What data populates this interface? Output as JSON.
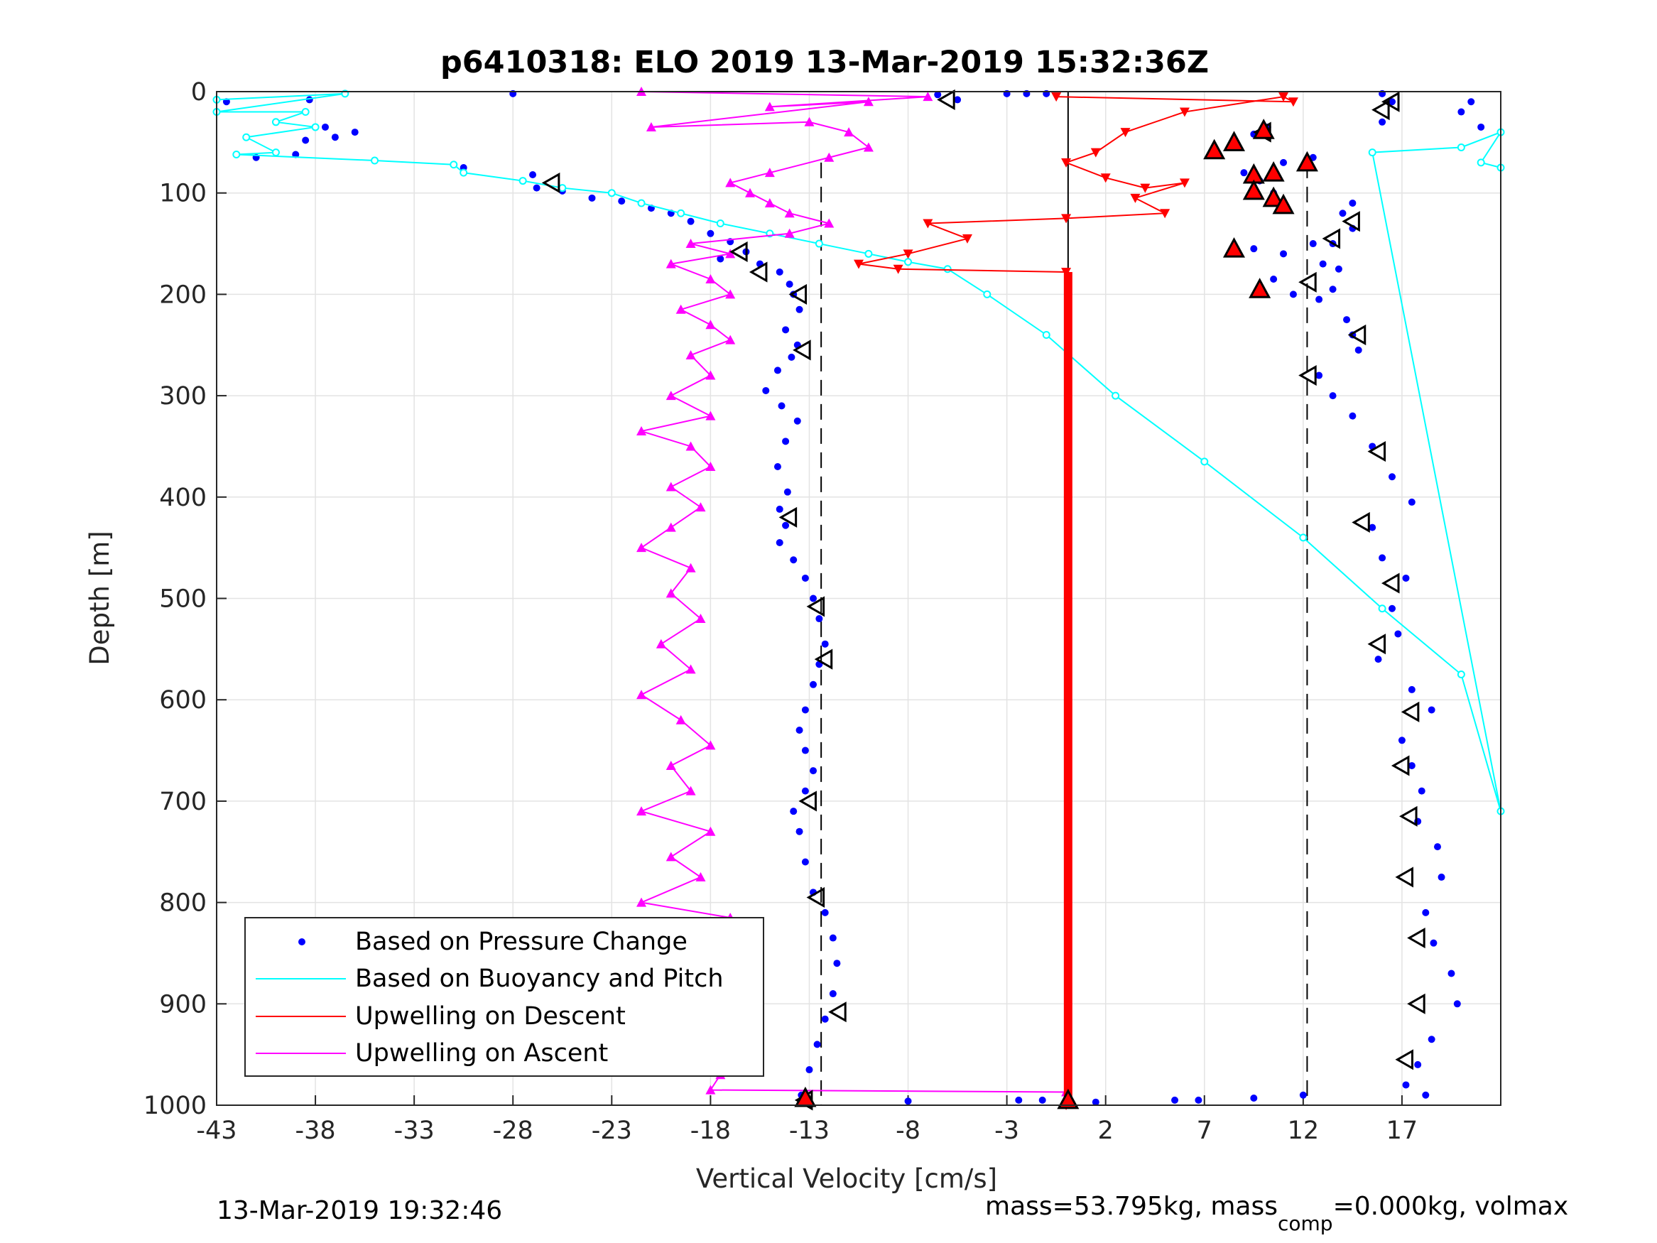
{
  "chart_data": {
    "type": "scatter",
    "title": "p6410318: ELO 2019 13-Mar-2019 15:32:36Z",
    "xlabel": "Vertical Velocity [cm/s]",
    "ylabel": "Depth [m]",
    "xlim": [
      -43,
      22
    ],
    "ylim": [
      0,
      1000
    ],
    "y_reversed": true,
    "grid": true,
    "legend_position": "bottom-left",
    "xticks": [
      -43,
      -38,
      -33,
      -28,
      -23,
      -18,
      -13,
      -8,
      -3,
      2,
      7,
      12,
      17
    ],
    "yticks": [
      0,
      100,
      200,
      300,
      400,
      500,
      600,
      700,
      800,
      900,
      1000
    ],
    "xtick_labels": [
      "-43",
      "-38",
      "-33",
      "-28",
      "-23",
      "-18",
      "-13",
      "-8",
      "-3",
      "2",
      "7",
      "12",
      "17"
    ],
    "ytick_labels": [
      "0",
      "100",
      "200",
      "300",
      "400",
      "500",
      "600",
      "700",
      "800",
      "900",
      "1000"
    ],
    "reference_lines": {
      "solid_x": 0.1,
      "dashed_x": [
        -12.4,
        12.2
      ]
    },
    "colors": {
      "pressure": "#0000ff",
      "buoyancy": "#00ffff",
      "descent": "#ff0000",
      "ascent": "#ff00ff",
      "reference": "#000000",
      "grid": "#e3e3e3"
    },
    "legend": [
      {
        "label": "Based on Pressure Change",
        "marker": "dot",
        "color": "#0000ff"
      },
      {
        "label": "Based on Buoyancy and Pitch",
        "marker": "line",
        "color": "#00ffff"
      },
      {
        "label": "Upwelling on Descent",
        "marker": "line",
        "color": "#ff0000"
      },
      {
        "label": "Upwelling on Ascent",
        "marker": "line",
        "color": "#ff00ff"
      }
    ],
    "series": [
      {
        "name": "Based on Pressure Change",
        "points": [
          [
            -42.5,
            10
          ],
          [
            -38.3,
            8
          ],
          [
            -37.5,
            35
          ],
          [
            -38.5,
            48
          ],
          [
            -36,
            40
          ],
          [
            -41,
            65
          ],
          [
            -39,
            62
          ],
          [
            -37,
            45
          ],
          [
            -35,
            68
          ],
          [
            -28,
            2
          ],
          [
            -30.5,
            75
          ],
          [
            -27,
            82
          ],
          [
            -26.8,
            95
          ],
          [
            -25.5,
            98
          ],
          [
            -24,
            105
          ],
          [
            -22.5,
            108
          ],
          [
            -21,
            115
          ],
          [
            -20,
            120
          ],
          [
            -19,
            128
          ],
          [
            -18,
            140
          ],
          [
            -17,
            148
          ],
          [
            -16.2,
            158
          ],
          [
            -17.5,
            165
          ],
          [
            -15.5,
            170
          ],
          [
            -14.5,
            178
          ],
          [
            -14,
            190
          ],
          [
            -13.8,
            200
          ],
          [
            -13.5,
            215
          ],
          [
            -14.2,
            235
          ],
          [
            -13.6,
            250
          ],
          [
            -13.9,
            262
          ],
          [
            -14.6,
            275
          ],
          [
            -15.2,
            295
          ],
          [
            -14.4,
            310
          ],
          [
            -13.6,
            325
          ],
          [
            -14.2,
            345
          ],
          [
            -14.6,
            370
          ],
          [
            -14.1,
            395
          ],
          [
            -14.5,
            412
          ],
          [
            -14.2,
            428
          ],
          [
            -14.5,
            445
          ],
          [
            -13.8,
            462
          ],
          [
            -13.2,
            480
          ],
          [
            -12.8,
            500
          ],
          [
            -12.5,
            520
          ],
          [
            -12.2,
            545
          ],
          [
            -12.5,
            565
          ],
          [
            -12.8,
            585
          ],
          [
            -13.2,
            610
          ],
          [
            -13.5,
            630
          ],
          [
            -13.2,
            650
          ],
          [
            -12.8,
            670
          ],
          [
            -13.2,
            690
          ],
          [
            -13.8,
            710
          ],
          [
            -13.5,
            730
          ],
          [
            -13.2,
            760
          ],
          [
            -12.8,
            790
          ],
          [
            -12.2,
            810
          ],
          [
            -11.8,
            835
          ],
          [
            -11.6,
            860
          ],
          [
            -11.8,
            890
          ],
          [
            -12.2,
            915
          ],
          [
            -12.6,
            940
          ],
          [
            -13,
            965
          ],
          [
            -13.4,
            990
          ],
          [
            -2.4,
            995
          ],
          [
            -1.2,
            995
          ],
          [
            1.5,
            997
          ],
          [
            5.5,
            995
          ],
          [
            6.7,
            995
          ],
          [
            9.5,
            993
          ],
          [
            12,
            990
          ],
          [
            -8,
            996
          ],
          [
            -6.5,
            3
          ],
          [
            -5.5,
            8
          ],
          [
            -3,
            2
          ],
          [
            -2,
            2
          ],
          [
            -1,
            2
          ],
          [
            7.5,
            55
          ],
          [
            8.5,
            48
          ],
          [
            9.5,
            42
          ],
          [
            10.2,
            35
          ],
          [
            12.5,
            65
          ],
          [
            11,
            70
          ],
          [
            9,
            80
          ],
          [
            9.8,
            88
          ],
          [
            10.5,
            100
          ],
          [
            11,
            110
          ],
          [
            9.5,
            155
          ],
          [
            11,
            160
          ],
          [
            12.5,
            150
          ],
          [
            10.5,
            185
          ],
          [
            11.5,
            200
          ],
          [
            12.8,
            205
          ],
          [
            13.5,
            195
          ],
          [
            13.8,
            175
          ],
          [
            13.5,
            150
          ],
          [
            14.5,
            135
          ],
          [
            14,
            120
          ],
          [
            14.5,
            110
          ],
          [
            15.5,
            60
          ],
          [
            16,
            30
          ],
          [
            16.5,
            10
          ],
          [
            16,
            2
          ],
          [
            13,
            170
          ],
          [
            14.2,
            225
          ],
          [
            14.5,
            240
          ],
          [
            14.8,
            255
          ],
          [
            12.8,
            280
          ],
          [
            13.5,
            300
          ],
          [
            14.5,
            320
          ],
          [
            15.5,
            350
          ],
          [
            16.5,
            380
          ],
          [
            17.5,
            405
          ],
          [
            15.5,
            430
          ],
          [
            16,
            460
          ],
          [
            17.2,
            480
          ],
          [
            16.5,
            510
          ],
          [
            16.8,
            535
          ],
          [
            15.8,
            560
          ],
          [
            17.5,
            590
          ],
          [
            18.5,
            610
          ],
          [
            17,
            640
          ],
          [
            17.5,
            665
          ],
          [
            18,
            690
          ],
          [
            17.8,
            720
          ],
          [
            18.8,
            745
          ],
          [
            19,
            775
          ],
          [
            18.2,
            810
          ],
          [
            18.6,
            840
          ],
          [
            19.5,
            870
          ],
          [
            19.8,
            900
          ],
          [
            18.5,
            935
          ],
          [
            17.8,
            960
          ],
          [
            17.2,
            980
          ],
          [
            18.2,
            990
          ],
          [
            20,
            20
          ],
          [
            21,
            35
          ],
          [
            20.5,
            10
          ]
        ]
      },
      {
        "name": "Based on Buoyancy and Pitch",
        "points": [
          [
            -43,
            8
          ],
          [
            -36.5,
            2
          ],
          [
            -43,
            20
          ],
          [
            -38.5,
            20
          ],
          [
            -40,
            30
          ],
          [
            -38,
            35
          ],
          [
            -41.5,
            45
          ],
          [
            -40,
            60
          ],
          [
            -42,
            62
          ],
          [
            -35,
            68
          ],
          [
            -31,
            72
          ],
          [
            -30.5,
            80
          ],
          [
            -27.5,
            88
          ],
          [
            -25.5,
            95
          ],
          [
            -23,
            100
          ],
          [
            -21.5,
            110
          ],
          [
            -19.5,
            120
          ],
          [
            -17.5,
            130
          ],
          [
            -15,
            140
          ],
          [
            -12.5,
            150
          ],
          [
            -10,
            160
          ],
          [
            -8,
            168
          ],
          [
            -6,
            175
          ],
          [
            -4,
            200
          ],
          [
            -1,
            240
          ],
          [
            2.5,
            300
          ],
          [
            7,
            365
          ],
          [
            12,
            440
          ],
          [
            16,
            510
          ],
          [
            20,
            575
          ],
          [
            22,
            710
          ],
          [
            15.5,
            60
          ],
          [
            20,
            55
          ],
          [
            22,
            40
          ],
          [
            21,
            70
          ],
          [
            22,
            75
          ]
        ]
      },
      {
        "name": "Upwelling on Descent",
        "points": [
          [
            -0.5,
            5
          ],
          [
            11.5,
            10
          ],
          [
            11,
            5
          ],
          [
            6,
            20
          ],
          [
            3,
            40
          ],
          [
            1.5,
            60
          ],
          [
            0,
            70
          ],
          [
            2,
            85
          ],
          [
            4,
            95
          ],
          [
            6,
            90
          ],
          [
            3.5,
            105
          ],
          [
            5,
            120
          ],
          [
            0,
            125
          ],
          [
            -7,
            130
          ],
          [
            -5,
            145
          ],
          [
            -8,
            160
          ],
          [
            -10.5,
            170
          ],
          [
            -8.5,
            175
          ],
          [
            0,
            178
          ],
          [
            0,
            1000
          ]
        ]
      },
      {
        "name": "Upwelling on Ascent",
        "points": [
          [
            -21.5,
            0
          ],
          [
            -7,
            5
          ],
          [
            -15,
            15
          ],
          [
            -10,
            10
          ],
          [
            -21,
            35
          ],
          [
            -13,
            30
          ],
          [
            -11,
            40
          ],
          [
            -10,
            55
          ],
          [
            -12,
            65
          ],
          [
            -15,
            80
          ],
          [
            -17,
            90
          ],
          [
            -16,
            100
          ],
          [
            -15,
            110
          ],
          [
            -14,
            120
          ],
          [
            -12,
            130
          ],
          [
            -14,
            140
          ],
          [
            -19,
            150
          ],
          [
            -17,
            160
          ],
          [
            -20,
            170
          ],
          [
            -18,
            185
          ],
          [
            -17,
            200
          ],
          [
            -19.5,
            215
          ],
          [
            -18,
            230
          ],
          [
            -17,
            245
          ],
          [
            -19,
            260
          ],
          [
            -18,
            280
          ],
          [
            -20,
            300
          ],
          [
            -18,
            320
          ],
          [
            -21.5,
            335
          ],
          [
            -19,
            350
          ],
          [
            -18,
            370
          ],
          [
            -20,
            390
          ],
          [
            -18.5,
            410
          ],
          [
            -20,
            430
          ],
          [
            -21.5,
            450
          ],
          [
            -19,
            470
          ],
          [
            -20,
            495
          ],
          [
            -18.5,
            520
          ],
          [
            -20.5,
            545
          ],
          [
            -19,
            570
          ],
          [
            -21.5,
            595
          ],
          [
            -19.5,
            620
          ],
          [
            -18,
            645
          ],
          [
            -20,
            665
          ],
          [
            -19,
            690
          ],
          [
            -21.5,
            710
          ],
          [
            -18,
            730
          ],
          [
            -20,
            755
          ],
          [
            -18.5,
            775
          ],
          [
            -21.5,
            800
          ],
          [
            -17,
            815
          ],
          [
            -19.5,
            840
          ],
          [
            -18,
            865
          ],
          [
            -21,
            890
          ],
          [
            -20,
            915
          ],
          [
            -19,
            940
          ],
          [
            -21,
            955
          ],
          [
            -17.5,
            970
          ],
          [
            -18,
            985
          ],
          [
            0,
            987
          ]
        ]
      }
    ],
    "markers": {
      "open_triangles": [
        [
          -6,
          8
        ],
        [
          -26,
          90
        ],
        [
          -16.5,
          158
        ],
        [
          -15.5,
          178
        ],
        [
          -13.5,
          200
        ],
        [
          -13.3,
          255
        ],
        [
          -14,
          420
        ],
        [
          -12.6,
          508
        ],
        [
          -12.2,
          560
        ],
        [
          -13,
          700
        ],
        [
          -12.6,
          795
        ],
        [
          -11.5,
          908
        ],
        [
          -13.2,
          995
        ],
        [
          10,
          40
        ],
        [
          16,
          18
        ],
        [
          16.5,
          10
        ],
        [
          14.5,
          128
        ],
        [
          13.5,
          145
        ],
        [
          12.3,
          188
        ],
        [
          14.8,
          240
        ],
        [
          12.3,
          280
        ],
        [
          15.8,
          355
        ],
        [
          15,
          425
        ],
        [
          16.5,
          485
        ],
        [
          15.8,
          545
        ],
        [
          17.5,
          612
        ],
        [
          17,
          665
        ],
        [
          17.4,
          715
        ],
        [
          17.2,
          775
        ],
        [
          17.8,
          835
        ],
        [
          17.8,
          900
        ],
        [
          17.2,
          955
        ]
      ],
      "filled_triangles": [
        [
          7.5,
          58
        ],
        [
          8.5,
          50
        ],
        [
          10,
          38
        ],
        [
          9.5,
          82
        ],
        [
          10.5,
          80
        ],
        [
          9.5,
          98
        ],
        [
          10.5,
          105
        ],
        [
          11,
          112
        ],
        [
          12.2,
          70
        ],
        [
          8.5,
          155
        ],
        [
          9.8,
          195
        ],
        [
          -13.2,
          993
        ],
        [
          0.1,
          995
        ]
      ]
    }
  },
  "footer": {
    "timestamp": "13-Mar-2019 19:32:46",
    "mass_text_1": "mass=53.795kg, mass",
    "mass_sub": "comp",
    "mass_text_2": "=0.000kg, volmax"
  }
}
